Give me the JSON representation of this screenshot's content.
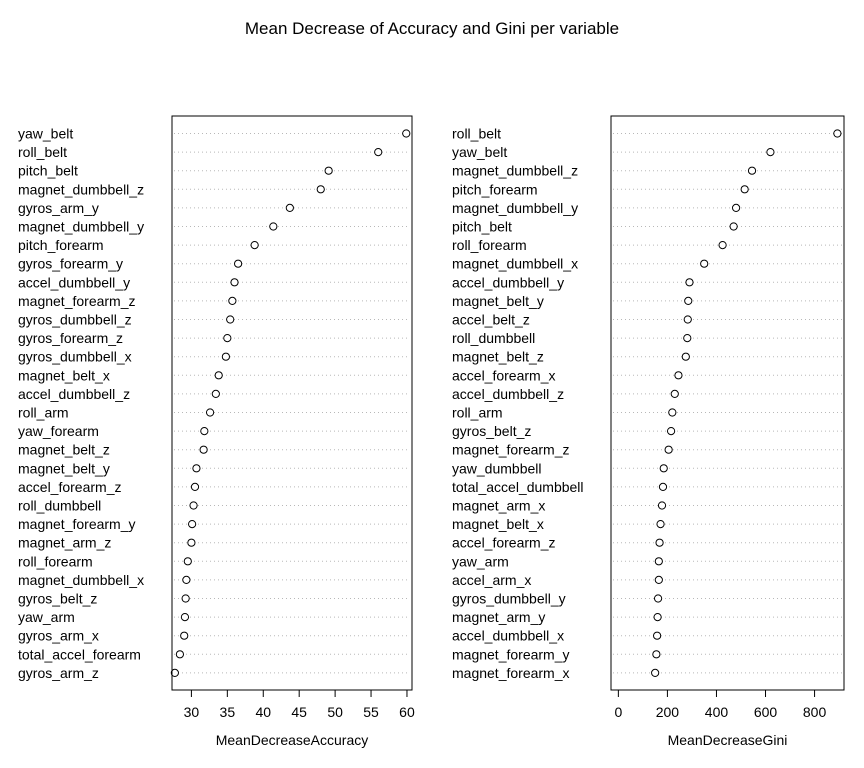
{
  "chart_data": {
    "type": "scatter",
    "title": "Mean Decrease of Accuracy and Gini per variable",
    "panels": [
      {
        "xlabel": "MeanDecreaseAccuracy",
        "xlim": [
          27.3,
          60.7
        ],
        "xticks": [
          30,
          35,
          40,
          45,
          50,
          55,
          60
        ],
        "labels": [
          "yaw_belt",
          "roll_belt",
          "pitch_belt",
          "magnet_dumbbell_z",
          "gyros_arm_y",
          "magnet_dumbbell_y",
          "pitch_forearm",
          "gyros_forearm_y",
          "accel_dumbbell_y",
          "magnet_forearm_z",
          "gyros_dumbbell_z",
          "gyros_forearm_z",
          "gyros_dumbbell_x",
          "magnet_belt_x",
          "accel_dumbbell_z",
          "roll_arm",
          "yaw_forearm",
          "magnet_belt_z",
          "magnet_belt_y",
          "accel_forearm_z",
          "roll_dumbbell",
          "magnet_forearm_y",
          "magnet_arm_z",
          "roll_forearm",
          "magnet_dumbbell_x",
          "gyros_belt_z",
          "yaw_arm",
          "gyros_arm_x",
          "total_accel_forearm",
          "gyros_arm_z"
        ],
        "values": [
          59.9,
          56.0,
          49.1,
          48.0,
          43.7,
          41.4,
          38.8,
          36.5,
          36.0,
          35.7,
          35.4,
          35.0,
          34.8,
          33.8,
          33.4,
          32.6,
          31.8,
          31.7,
          30.7,
          30.5,
          30.3,
          30.1,
          30.0,
          29.5,
          29.3,
          29.2,
          29.1,
          29.0,
          28.4,
          27.7
        ]
      },
      {
        "xlabel": "MeanDecreaseGini",
        "xlim": [
          -30,
          920
        ],
        "xticks": [
          0,
          200,
          400,
          600,
          800
        ],
        "labels": [
          "roll_belt",
          "yaw_belt",
          "magnet_dumbbell_z",
          "pitch_forearm",
          "magnet_dumbbell_y",
          "pitch_belt",
          "roll_forearm",
          "magnet_dumbbell_x",
          "accel_dumbbell_y",
          "magnet_belt_y",
          "accel_belt_z",
          "roll_dumbbell",
          "magnet_belt_z",
          "accel_forearm_x",
          "accel_dumbbell_z",
          "roll_arm",
          "gyros_belt_z",
          "magnet_forearm_z",
          "yaw_dumbbell",
          "total_accel_dumbbell",
          "magnet_arm_x",
          "magnet_belt_x",
          "accel_forearm_z",
          "yaw_arm",
          "accel_arm_x",
          "gyros_dumbbell_y",
          "magnet_arm_y",
          "accel_dumbbell_x",
          "magnet_forearm_y",
          "magnet_forearm_x"
        ],
        "values": [
          893,
          620,
          545,
          515,
          480,
          470,
          425,
          350,
          290,
          285,
          283,
          281,
          275,
          245,
          230,
          220,
          215,
          205,
          185,
          182,
          178,
          172,
          168,
          165,
          165,
          162,
          160,
          158,
          155,
          150
        ]
      }
    ]
  }
}
